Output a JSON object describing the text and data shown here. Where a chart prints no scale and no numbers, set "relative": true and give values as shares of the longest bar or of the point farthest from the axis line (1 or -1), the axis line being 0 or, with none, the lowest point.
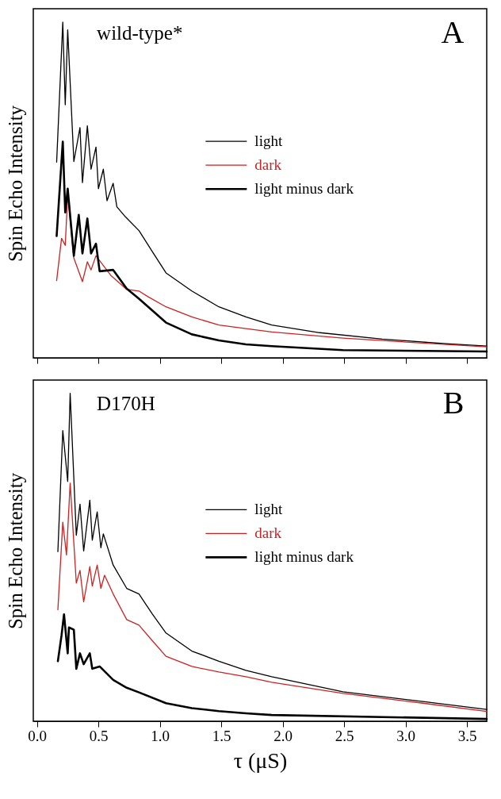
{
  "chart_data": [
    {
      "type": "line",
      "ylabel": "Spin Echo Intensity",
      "annotations": [
        "wild-type*",
        "A"
      ],
      "relative": true,
      "xlim": [
        -0.03,
        3.66
      ],
      "xticks": [
        0,
        0.5,
        1,
        1.5,
        2,
        2.5,
        3,
        3.5
      ],
      "tick_labels": false,
      "legend": "right",
      "marker": "none",
      "series": [
        {
          "name": "light",
          "color": "#000000",
          "x": [
            0.16,
            0.21,
            0.23,
            0.25,
            0.3,
            0.35,
            0.37,
            0.41,
            0.44,
            0.48,
            0.5,
            0.54,
            0.57,
            0.62,
            0.65,
            0.72,
            0.83,
            0.95,
            1.05,
            1.26,
            1.48,
            1.7,
            1.91,
            2.3,
            2.81,
            3.33,
            3.66
          ],
          "values": [
            0.583,
            1.0,
            0.754,
            0.977,
            0.585,
            0.686,
            0.522,
            0.691,
            0.562,
            0.628,
            0.504,
            0.562,
            0.468,
            0.52,
            0.45,
            0.42,
            0.379,
            0.31,
            0.253,
            0.199,
            0.152,
            0.122,
            0.098,
            0.075,
            0.056,
            0.042,
            0.035
          ]
        },
        {
          "name": "dark",
          "color": "#cc2222",
          "x": [
            0.16,
            0.2,
            0.23,
            0.25,
            0.3,
            0.37,
            0.41,
            0.44,
            0.48,
            0.6,
            0.73,
            0.83,
            0.9,
            1.05,
            1.26,
            1.48,
            1.7,
            1.91,
            2.49,
            3.14,
            3.66
          ],
          "values": [
            0.23,
            0.356,
            0.335,
            0.487,
            0.297,
            0.227,
            0.286,
            0.262,
            0.304,
            0.246,
            0.204,
            0.199,
            0.183,
            0.152,
            0.122,
            0.098,
            0.087,
            0.077,
            0.059,
            0.044,
            0.033
          ]
        },
        {
          "name": "light minus dark",
          "color": "#000000",
          "x": [
            0.16,
            0.21,
            0.23,
            0.25,
            0.3,
            0.34,
            0.37,
            0.41,
            0.44,
            0.48,
            0.51,
            0.62,
            0.73,
            0.83,
            1.05,
            1.26,
            1.48,
            1.7,
            1.91,
            2.49,
            3.66
          ],
          "values": [
            0.363,
            0.644,
            0.433,
            0.504,
            0.304,
            0.426,
            0.311,
            0.415,
            0.311,
            0.34,
            0.258,
            0.262,
            0.206,
            0.176,
            0.105,
            0.07,
            0.052,
            0.04,
            0.035,
            0.023,
            0.019
          ]
        }
      ]
    },
    {
      "type": "line",
      "xlabel": "τ (μS)",
      "ylabel": "Spin Echo Intensity",
      "annotations": [
        "D170H",
        "B"
      ],
      "relative": true,
      "xlim": [
        -0.03,
        3.66
      ],
      "xticks": [
        {
          "value": 0,
          "label": "0.0"
        },
        0.5,
        {
          "value": 1,
          "label": "1.0"
        },
        1.5,
        {
          "value": 2,
          "label": "2.0"
        },
        2.5,
        {
          "value": 3,
          "label": "3.0"
        },
        3.5
      ],
      "tick_labels": "x",
      "legend": "right",
      "marker": "none",
      "series": [
        {
          "name": "light",
          "color": "#000000",
          "x": [
            0.17,
            0.21,
            0.25,
            0.27,
            0.32,
            0.35,
            0.38,
            0.43,
            0.45,
            0.49,
            0.52,
            0.54,
            0.62,
            0.73,
            0.83,
            0.94,
            1.05,
            1.26,
            1.48,
            1.7,
            1.91,
            2.49,
            3.14,
            3.66
          ],
          "values": [
            0.517,
            0.886,
            0.731,
            1.0,
            0.567,
            0.662,
            0.519,
            0.674,
            0.552,
            0.638,
            0.529,
            0.571,
            0.476,
            0.405,
            0.388,
            0.326,
            0.269,
            0.214,
            0.183,
            0.155,
            0.136,
            0.09,
            0.06,
            0.036
          ]
        },
        {
          "name": "dark",
          "color": "#cc2222",
          "x": [
            0.17,
            0.21,
            0.24,
            0.27,
            0.32,
            0.35,
            0.38,
            0.43,
            0.45,
            0.49,
            0.52,
            0.55,
            0.62,
            0.73,
            0.83,
            0.94,
            1.05,
            1.26,
            1.48,
            1.7,
            1.91,
            2.49,
            3.14,
            3.66
          ],
          "values": [
            0.34,
            0.607,
            0.507,
            0.726,
            0.421,
            0.46,
            0.364,
            0.471,
            0.412,
            0.476,
            0.405,
            0.445,
            0.388,
            0.31,
            0.293,
            0.245,
            0.198,
            0.167,
            0.15,
            0.136,
            0.119,
            0.085,
            0.055,
            0.03
          ]
        },
        {
          "name": "light minus dark",
          "color": "#000000",
          "x": [
            0.17,
            0.2,
            0.22,
            0.25,
            0.26,
            0.3,
            0.32,
            0.35,
            0.38,
            0.43,
            0.45,
            0.51,
            0.62,
            0.73,
            0.83,
            1.05,
            1.26,
            1.48,
            1.7,
            1.91,
            3.66
          ],
          "values": [
            0.183,
            0.262,
            0.326,
            0.207,
            0.286,
            0.279,
            0.16,
            0.207,
            0.174,
            0.207,
            0.16,
            0.167,
            0.126,
            0.102,
            0.088,
            0.055,
            0.04,
            0.031,
            0.024,
            0.019,
            0.007
          ]
        }
      ]
    }
  ]
}
